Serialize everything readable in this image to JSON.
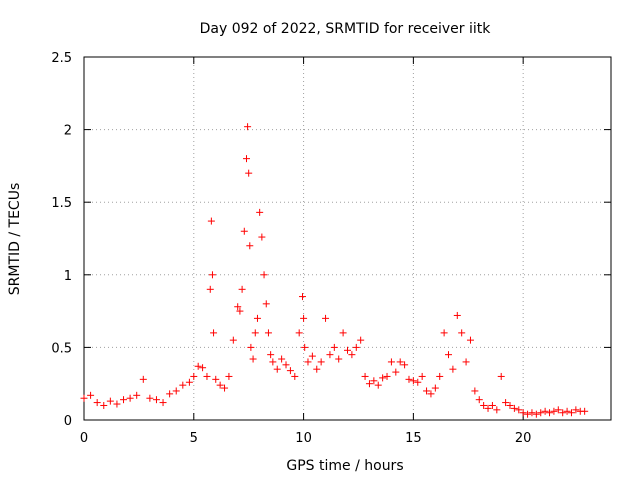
{
  "chart_data": {
    "type": "scatter",
    "title": "Day 092 of 2022, SRMTID for receiver iitk",
    "xlabel": "GPS time / hours",
    "ylabel": "SRMTID / TECUs",
    "xlim": [
      0,
      24
    ],
    "ylim": [
      0,
      2.5
    ],
    "xticks": [
      0,
      5,
      10,
      15,
      20
    ],
    "xtick_labels": [
      "0",
      "5",
      "10",
      "15",
      "20"
    ],
    "yticks": [
      0,
      0.5,
      1,
      1.5,
      2,
      2.5
    ],
    "ytick_labels": [
      "0",
      "0.5",
      "1",
      "1.5",
      "2",
      "2.5"
    ],
    "grid": true,
    "marker": "plus",
    "marker_color": "#ff0000",
    "series": [
      {
        "name": "SRMTID",
        "x": [
          0.0,
          0.3,
          0.6,
          0.9,
          1.2,
          1.5,
          1.8,
          2.1,
          2.4,
          2.7,
          3.0,
          3.3,
          3.6,
          3.9,
          4.2,
          4.5,
          4.8,
          5.0,
          5.2,
          5.4,
          5.6,
          5.75,
          5.8,
          5.85,
          5.9,
          6.0,
          6.2,
          6.4,
          6.6,
          6.8,
          7.0,
          7.1,
          7.2,
          7.3,
          7.4,
          7.45,
          7.5,
          7.55,
          7.6,
          7.7,
          7.8,
          7.9,
          8.0,
          8.1,
          8.2,
          8.3,
          8.4,
          8.5,
          8.6,
          8.8,
          9.0,
          9.2,
          9.4,
          9.6,
          9.8,
          9.95,
          10.0,
          10.05,
          10.2,
          10.4,
          10.6,
          10.8,
          11.0,
          11.2,
          11.4,
          11.6,
          11.8,
          12.0,
          12.2,
          12.4,
          12.6,
          12.8,
          13.0,
          13.2,
          13.4,
          13.6,
          13.8,
          14.0,
          14.2,
          14.4,
          14.6,
          14.8,
          15.0,
          15.2,
          15.4,
          15.6,
          15.8,
          16.0,
          16.2,
          16.4,
          16.6,
          16.8,
          17.0,
          17.2,
          17.4,
          17.6,
          17.8,
          18.0,
          18.2,
          18.4,
          18.6,
          18.8,
          19.0,
          19.2,
          19.4,
          19.6,
          19.8,
          20.0,
          20.2,
          20.4,
          20.6,
          20.8,
          21.0,
          21.2,
          21.4,
          21.6,
          21.8,
          22.0,
          22.2,
          22.4,
          22.6,
          22.8
        ],
        "y": [
          0.15,
          0.17,
          0.12,
          0.1,
          0.13,
          0.11,
          0.14,
          0.15,
          0.17,
          0.28,
          0.15,
          0.14,
          0.12,
          0.18,
          0.2,
          0.24,
          0.26,
          0.3,
          0.37,
          0.36,
          0.3,
          0.9,
          1.37,
          1.0,
          0.6,
          0.28,
          0.24,
          0.22,
          0.3,
          0.55,
          0.78,
          0.75,
          0.9,
          1.3,
          1.8,
          2.02,
          1.7,
          1.2,
          0.5,
          0.42,
          0.6,
          0.7,
          1.43,
          1.26,
          1.0,
          0.8,
          0.6,
          0.45,
          0.4,
          0.35,
          0.42,
          0.38,
          0.34,
          0.3,
          0.6,
          0.85,
          0.7,
          0.5,
          0.4,
          0.44,
          0.35,
          0.4,
          0.7,
          0.45,
          0.5,
          0.42,
          0.6,
          0.48,
          0.45,
          0.5,
          0.55,
          0.3,
          0.25,
          0.27,
          0.24,
          0.29,
          0.3,
          0.4,
          0.33,
          0.4,
          0.38,
          0.28,
          0.27,
          0.26,
          0.3,
          0.2,
          0.18,
          0.22,
          0.3,
          0.6,
          0.45,
          0.35,
          0.72,
          0.6,
          0.4,
          0.55,
          0.2,
          0.14,
          0.1,
          0.08,
          0.1,
          0.07,
          0.3,
          0.12,
          0.1,
          0.08,
          0.07,
          0.05,
          0.04,
          0.05,
          0.04,
          0.05,
          0.06,
          0.05,
          0.06,
          0.07,
          0.05,
          0.06,
          0.05,
          0.07,
          0.06,
          0.06
        ]
      }
    ]
  }
}
